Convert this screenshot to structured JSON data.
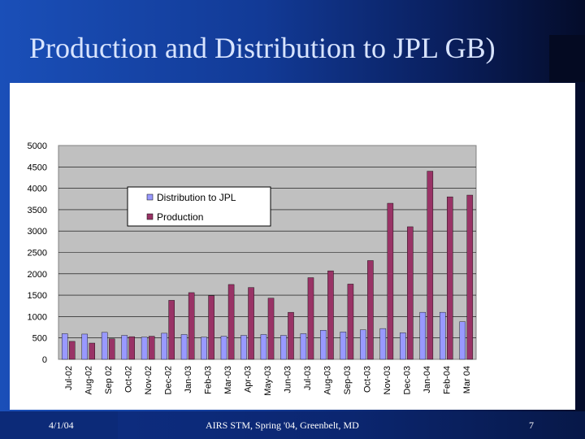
{
  "slide": {
    "title": "Production and Distribution to JPL GB)",
    "footer_date": "4/1/04",
    "footer_center": "AIRS STM, Spring '04, Greenbelt, MD",
    "page_number": "7"
  },
  "colors": {
    "distribution": "#9999ff",
    "production": "#993366",
    "plot_bg": "#c0c0c0"
  },
  "chart_data": {
    "type": "bar",
    "title": "",
    "xlabel": "",
    "ylabel": "",
    "ylim": [
      0,
      5000
    ],
    "yticks": [
      0,
      500,
      1000,
      1500,
      2000,
      2500,
      3000,
      3500,
      4000,
      4500,
      5000
    ],
    "grid": true,
    "legend": "top-left",
    "categories": [
      "Jul-02",
      "Aug-02",
      "Sep 02",
      "Oct-02",
      "Nov-02",
      "Dec-02",
      "Jan-03",
      "Feb-03",
      "Mar-03",
      "Apr-03",
      "May-03",
      "Jun-03",
      "Jul-03",
      "Aug-03",
      "Sep-03",
      "Oct-03",
      "Nov-03",
      "Dec-03",
      "Jan-04",
      "Feb-04",
      "Mar 04"
    ],
    "series": [
      {
        "name": "Distribution to JPL",
        "values": [
          600,
          590,
          630,
          560,
          520,
          610,
          580,
          520,
          540,
          560,
          580,
          560,
          600,
          680,
          640,
          690,
          720,
          620,
          1100,
          1100,
          880
        ]
      },
      {
        "name": "Production",
        "values": [
          420,
          380,
          480,
          530,
          540,
          1380,
          1560,
          1490,
          1750,
          1680,
          1430,
          1100,
          1910,
          2070,
          1760,
          2310,
          3650,
          3100,
          4400,
          3800,
          3840
        ]
      }
    ]
  }
}
